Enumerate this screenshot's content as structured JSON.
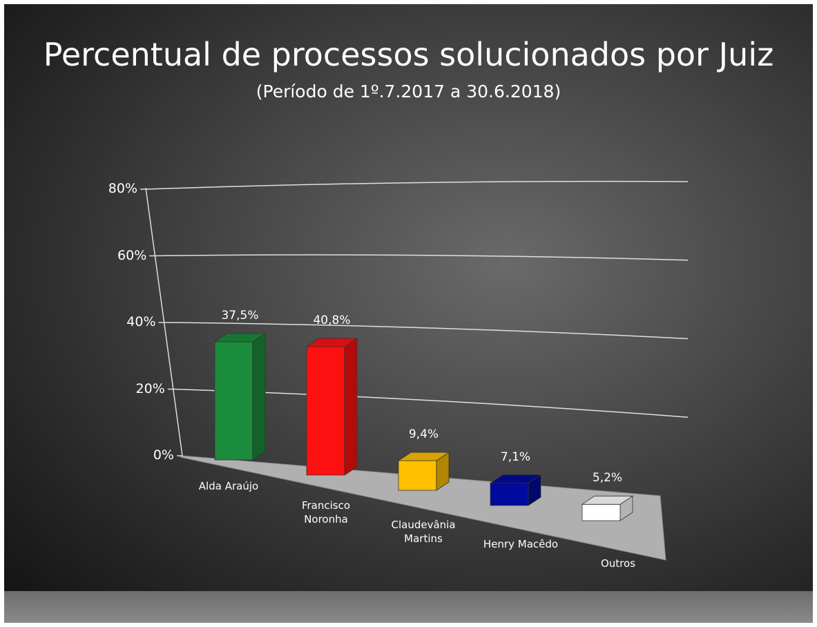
{
  "chart_data": {
    "type": "bar3d",
    "title": "Percentual de processos solucionados por Juiz",
    "subtitle": "(Período de 1º.7.2017  a  30.6.2018)",
    "categories": [
      "Alda Araújo",
      "Francisco Noronha",
      "Claudevânia Martins",
      "Henry Macêdo",
      "Outros"
    ],
    "values": [
      37.5,
      40.8,
      9.4,
      7.1,
      5.2
    ],
    "value_labels": [
      "37,5%",
      "40,8%",
      "9,4%",
      "7,1%",
      "5,2%"
    ],
    "colors": [
      "#1a8c3c",
      "#ff1010",
      "#ffc000",
      "#000a9c",
      "#ffffff"
    ],
    "ylim": [
      0,
      80
    ],
    "yticks": [
      {
        "value": 0,
        "label": "0%"
      },
      {
        "value": 20,
        "label": "20%"
      },
      {
        "value": 40,
        "label": "40%"
      },
      {
        "value": 60,
        "label": "60%"
      },
      {
        "value": 80,
        "label": "80%"
      }
    ],
    "grid": true
  }
}
